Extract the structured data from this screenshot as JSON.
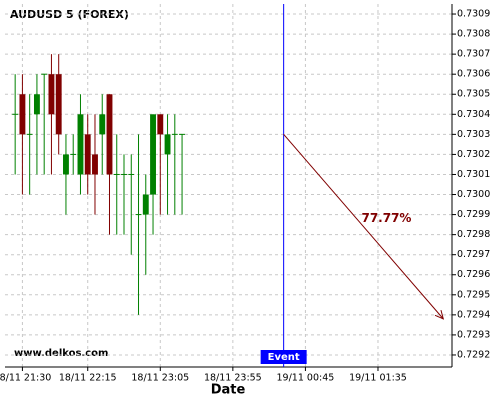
{
  "chart_data": {
    "type": "candlestick",
    "title": "AUDUSD 5 (FOREX)",
    "watermark": "www.delkos.com",
    "x_label": "Date",
    "x": [
      "18/11 21:25",
      "18/11 21:30",
      "18/11 21:35",
      "18/11 21:40",
      "18/11 21:45",
      "18/11 21:50",
      "18/11 21:55",
      "18/11 22:00",
      "18/11 22:05",
      "18/11 22:10",
      "18/11 22:15",
      "18/11 22:20",
      "18/11 22:25",
      "18/11 22:30",
      "18/11 22:35",
      "18/11 22:40",
      "18/11 22:45",
      "18/11 22:50",
      "18/11 22:55",
      "18/11 23:00",
      "18/11 23:05",
      "18/11 23:10",
      "18/11 23:15",
      "18/11 23:20"
    ],
    "open": [
      0.7304,
      0.7305,
      0.7303,
      0.7304,
      0.7306,
      0.7306,
      0.7306,
      0.7301,
      0.7302,
      0.7301,
      0.7303,
      0.7302,
      0.7303,
      0.7305,
      0.7301,
      0.7301,
      0.7301,
      0.7299,
      0.7299,
      0.73,
      0.7304,
      0.7302,
      0.7303,
      0.7303
    ],
    "high": [
      0.7306,
      0.7306,
      0.7305,
      0.7306,
      0.7306,
      0.7307,
      0.7307,
      0.7303,
      0.7303,
      0.7305,
      0.7304,
      0.7304,
      0.7305,
      0.7305,
      0.7303,
      0.7302,
      0.7302,
      0.7303,
      0.7301,
      0.7304,
      0.7304,
      0.7304,
      0.7304,
      0.7303
    ],
    "low": [
      0.7301,
      0.73,
      0.73,
      0.7301,
      0.7301,
      0.7301,
      0.7302,
      0.7299,
      0.7301,
      0.73,
      0.73,
      0.7299,
      0.7301,
      0.7298,
      0.7298,
      0.7298,
      0.7297,
      0.7294,
      0.7296,
      0.7298,
      0.7299,
      0.7299,
      0.7299,
      0.7299
    ],
    "close": [
      0.7304,
      0.7303,
      0.7303,
      0.7305,
      0.7306,
      0.7304,
      0.7303,
      0.7302,
      0.7302,
      0.7304,
      0.7301,
      0.7301,
      0.7304,
      0.7301,
      0.7301,
      0.7301,
      0.7301,
      0.7299,
      0.73,
      0.7304,
      0.7303,
      0.7303,
      0.7303,
      0.7303
    ],
    "up_color": "#008000",
    "down_color": "#800000",
    "xlim": [
      "18/11 21:18",
      "19/11 02:26"
    ],
    "xticks": [
      "18/11 21:30",
      "18/11 22:15",
      "18/11 23:05",
      "18/11 23:55",
      "19/11 00:45",
      "19/11 01:35"
    ],
    "ylim": [
      0.72914,
      0.73095
    ],
    "yticks": [
      0.7292,
      0.7293,
      0.7294,
      0.7295,
      0.7296,
      0.7297,
      0.7298,
      0.7299,
      {
        "value": 0.73,
        "label": "0.7300"
      },
      0.7301,
      0.7302,
      0.7303,
      0.7304,
      0.7305,
      0.7306,
      0.7307,
      0.7308,
      0.7309
    ],
    "grid": true,
    "event": {
      "x": "19/11 00:30",
      "label": "Event",
      "color": "#0000ff"
    },
    "arrow": {
      "x": [
        "19/11 00:30",
        "19/11 02:20"
      ],
      "y": [
        0.7303,
        0.72938
      ],
      "label": "77.77%",
      "color": "#800000"
    }
  }
}
